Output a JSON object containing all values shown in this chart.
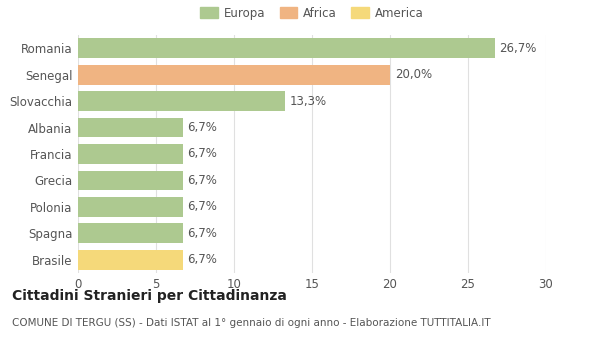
{
  "categories": [
    "Romania",
    "Senegal",
    "Slovacchia",
    "Albania",
    "Francia",
    "Grecia",
    "Polonia",
    "Spagna",
    "Brasile"
  ],
  "values": [
    26.7,
    20.0,
    13.3,
    6.7,
    6.7,
    6.7,
    6.7,
    6.7,
    6.7
  ],
  "labels": [
    "26,7%",
    "20,0%",
    "13,3%",
    "6,7%",
    "6,7%",
    "6,7%",
    "6,7%",
    "6,7%",
    "6,7%"
  ],
  "colors": [
    "#adc990",
    "#f0b482",
    "#adc990",
    "#adc990",
    "#adc990",
    "#adc990",
    "#adc990",
    "#adc990",
    "#f5d97a"
  ],
  "legend_labels": [
    "Europa",
    "Africa",
    "America"
  ],
  "legend_colors": [
    "#adc990",
    "#f0b482",
    "#f5d97a"
  ],
  "xlim": [
    0,
    30
  ],
  "xticks": [
    0,
    5,
    10,
    15,
    20,
    25,
    30
  ],
  "title": "Cittadini Stranieri per Cittadinanza",
  "subtitle": "COMUNE DI TERGU (SS) - Dati ISTAT al 1° gennaio di ogni anno - Elaborazione TUTTITALIA.IT",
  "bg_color": "#ffffff",
  "grid_color": "#e0e0e0",
  "bar_height": 0.75,
  "label_fontsize": 8.5,
  "tick_fontsize": 8.5,
  "title_fontsize": 10,
  "subtitle_fontsize": 7.5
}
